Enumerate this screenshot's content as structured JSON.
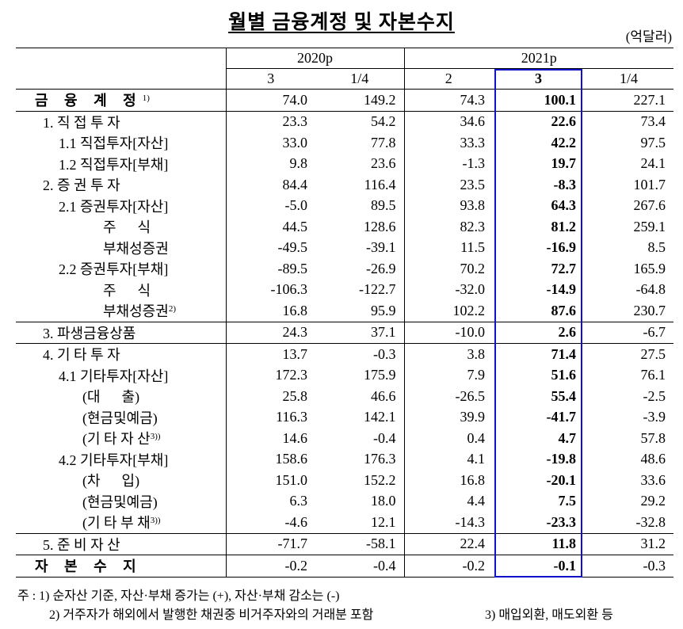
{
  "title": "월별 금융계정 및 자본수지",
  "unit": "(억달러)",
  "table": {
    "years": [
      "2020p",
      "2021p"
    ],
    "periods": [
      "3",
      "1/4",
      "2",
      "3",
      "1/4"
    ],
    "rows": [
      {
        "label": "금 융 계 정",
        "sup": "1)",
        "values": [
          "74.0",
          "149.2",
          "74.3",
          "100.1",
          "227.1"
        ]
      },
      {
        "label": "1. 직 접 투 자",
        "values": [
          "23.3",
          "54.2",
          "34.6",
          "22.6",
          "73.4"
        ]
      },
      {
        "label": "1.1 직접투자[자산]",
        "values": [
          "33.0",
          "77.8",
          "33.3",
          "42.2",
          "97.5"
        ]
      },
      {
        "label": "1.2 직접투자[부채]",
        "values": [
          "9.8",
          "23.6",
          "-1.3",
          "19.7",
          "24.1"
        ]
      },
      {
        "label": "2. 증 권 투 자",
        "values": [
          "84.4",
          "116.4",
          "23.5",
          "-8.3",
          "101.7"
        ]
      },
      {
        "label": "2.1 증권투자[자산]",
        "values": [
          "-5.0",
          "89.5",
          "93.8",
          "64.3",
          "267.6"
        ]
      },
      {
        "label": "주      식",
        "values": [
          "44.5",
          "128.6",
          "82.3",
          "81.2",
          "259.1"
        ]
      },
      {
        "label": "부채성증권",
        "values": [
          "-49.5",
          "-39.1",
          "11.5",
          "-16.9",
          "8.5"
        ]
      },
      {
        "label": "2.2 증권투자[부채]",
        "values": [
          "-89.5",
          "-26.9",
          "70.2",
          "72.7",
          "165.9"
        ]
      },
      {
        "label": "주      식",
        "values": [
          "-106.3",
          "-122.7",
          "-32.0",
          "-14.9",
          "-64.8"
        ]
      },
      {
        "label": "부채성증권",
        "sup": "2)",
        "values": [
          "16.8",
          "95.9",
          "102.2",
          "87.6",
          "230.7"
        ]
      },
      {
        "label": "3. 파생금융상품",
        "values": [
          "24.3",
          "37.1",
          "-10.0",
          "2.6",
          "-6.7"
        ]
      },
      {
        "label": "4. 기 타 투 자",
        "values": [
          "13.7",
          "-0.3",
          "3.8",
          "71.4",
          "27.5"
        ]
      },
      {
        "label": "4.1 기타투자[자산]",
        "values": [
          "172.3",
          "175.9",
          "7.9",
          "51.6",
          "76.1"
        ]
      },
      {
        "label": "(대      출)",
        "values": [
          "25.8",
          "46.6",
          "-26.5",
          "55.4",
          "-2.5"
        ]
      },
      {
        "label": "(현금및예금)",
        "values": [
          "116.3",
          "142.1",
          "39.9",
          "-41.7",
          "-3.9"
        ]
      },
      {
        "label": "(기 타 자 산",
        "sup": "3))",
        "values": [
          "14.6",
          "-0.4",
          "0.4",
          "4.7",
          "57.8"
        ]
      },
      {
        "label": "4.2 기타투자[부채]",
        "values": [
          "158.6",
          "176.3",
          "4.1",
          "-19.8",
          "48.6"
        ]
      },
      {
        "label": "(차      입)",
        "values": [
          "151.0",
          "152.2",
          "16.8",
          "-20.1",
          "33.6"
        ]
      },
      {
        "label": "(현금및예금)",
        "values": [
          "6.3",
          "18.0",
          "4.4",
          "7.5",
          "29.2"
        ]
      },
      {
        "label": "(기 타 부 채",
        "sup": "3))",
        "values": [
          "-4.6",
          "12.1",
          "-14.3",
          "-23.3",
          "-32.8"
        ]
      },
      {
        "label": "5. 준 비 자 산",
        "values": [
          "-71.7",
          "-58.1",
          "22.4",
          "11.8",
          "31.2"
        ]
      },
      {
        "label": "자 본 수 지",
        "values": [
          "-0.2",
          "-0.4",
          "-0.2",
          "-0.1",
          "-0.3"
        ]
      }
    ]
  },
  "notes": [
    "주 : 1) 순자산 기준, 자산·부채 증가는 (+), 자산·부채 감소는 (-)",
    "2) 거주자가 해외에서 발행한 채권중 비거주자와의 거래분 포함",
    "3) 매입외환, 매도외환 등"
  ]
}
